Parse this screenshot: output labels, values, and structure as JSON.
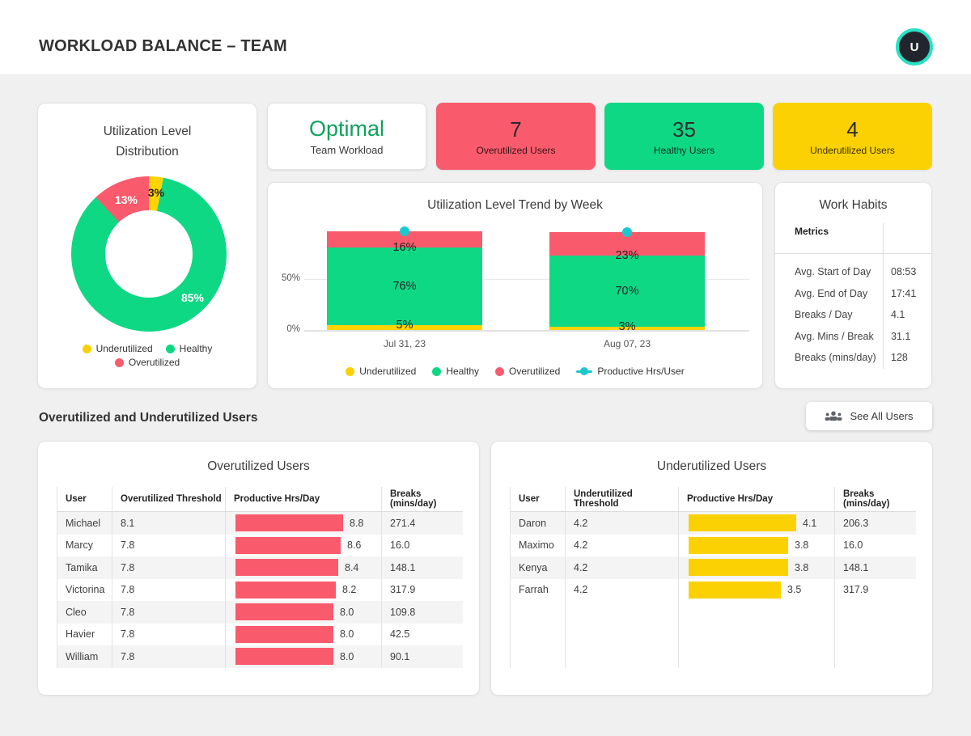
{
  "colors": {
    "overutilized_red": "#f95b6d",
    "healthy_green": "#0fd885",
    "underutilized_yellow": "#fbd104",
    "chart_yellow": "#ffd400",
    "productive_teal": "#1bc8ce",
    "optimal_text_green": "#0fa25d",
    "avatar_ring_teal": "#2be0c5",
    "avatar_bg": "#23252e"
  },
  "header": {
    "title": "WORKLOAD BALANCE – TEAM",
    "avatar_letter": "U"
  },
  "donut_card": {
    "title_line1": "Utilization Level",
    "title_line2": "Distribution",
    "chart": {
      "slices": [
        {
          "name": "Underutilized",
          "pct": 3,
          "label": "3%",
          "color": "#ffd400"
        },
        {
          "name": "Healthy",
          "pct": 85,
          "label": "85%",
          "color": "#0fd885"
        },
        {
          "name": "Overutilized",
          "pct": 13,
          "label": "13%",
          "color": "#f95b6d"
        }
      ]
    },
    "legend": [
      {
        "label": "Underutilized"
      },
      {
        "label": "Healthy"
      },
      {
        "label": "Overutilized"
      }
    ]
  },
  "kpi_cards": [
    {
      "value": "Optimal",
      "label": "Team Workload"
    },
    {
      "value": "7",
      "label": "Overutilized Users"
    },
    {
      "value": "35",
      "label": "Healthy Users"
    },
    {
      "value": "4",
      "label": "Underutilized Users"
    }
  ],
  "trend_card": {
    "title": "Utilization Level Trend by Week",
    "y_ticks": [
      "50%",
      "0%"
    ],
    "weeks": [
      {
        "date": "Jul 31, 23",
        "underutilized": 5,
        "healthy": 76,
        "overutilized": 16,
        "underutilized_label": "5%",
        "healthy_label": "76%",
        "overutilized_label": "16%"
      },
      {
        "date": "Aug 07, 23",
        "underutilized": 3,
        "healthy": 70,
        "overutilized": 23,
        "underutilized_label": "3%",
        "healthy_label": "70%",
        "overutilized_label": "23%"
      }
    ],
    "legend": [
      {
        "label": "Underutilized"
      },
      {
        "label": "Healthy"
      },
      {
        "label": "Overutilized"
      },
      {
        "label": "Productive Hrs/User"
      }
    ]
  },
  "work_habits": {
    "title": "Work Habits",
    "header": "Metrics",
    "rows": [
      {
        "label": "Avg. Start of Day",
        "value": "08:53"
      },
      {
        "label": "Avg. End of Day",
        "value": "17:41"
      },
      {
        "label": "Breaks / Day",
        "value": "4.1"
      },
      {
        "label": "Avg. Mins / Break",
        "value": "31.1"
      },
      {
        "label": "Breaks (mins/day)",
        "value": "128"
      }
    ]
  },
  "section": {
    "heading": "Overutilized and Underutilized Users",
    "see_all_label": "See All Users"
  },
  "overutilized_table": {
    "title": "Overutilized Users",
    "columns": [
      "User",
      "Overutilized Threshold",
      "Productive Hrs/Day",
      "Breaks (mins/day)"
    ],
    "bar_max": 8.8,
    "rows": [
      {
        "user": "Michael",
        "threshold": "8.1",
        "hours": "8.8",
        "breaks": "271.4"
      },
      {
        "user": "Marcy",
        "threshold": "7.8",
        "hours": "8.6",
        "breaks": "16.0"
      },
      {
        "user": "Tamika",
        "threshold": "7.8",
        "hours": "8.4",
        "breaks": "148.1"
      },
      {
        "user": "Victorina",
        "threshold": "7.8",
        "hours": "8.2",
        "breaks": "317.9"
      },
      {
        "user": "Cleo",
        "threshold": "7.8",
        "hours": "8.0",
        "breaks": "109.8"
      },
      {
        "user": "Havier",
        "threshold": "7.8",
        "hours": "8.0",
        "breaks": "42.5"
      },
      {
        "user": "William",
        "threshold": "7.8",
        "hours": "8.0",
        "breaks": "90.1"
      }
    ]
  },
  "underutilized_table": {
    "title": "Underutilized Users",
    "columns": [
      "User",
      "Underutilized Threshold",
      "Productive Hrs/Day",
      "Breaks (mins/day)"
    ],
    "bar_max": 4.1,
    "rows": [
      {
        "user": "Daron",
        "threshold": "4.2",
        "hours": "4.1",
        "breaks": "206.3"
      },
      {
        "user": "Maximo",
        "threshold": "4.2",
        "hours": "3.8",
        "breaks": "16.0"
      },
      {
        "user": "Kenya",
        "threshold": "4.2",
        "hours": "3.8",
        "breaks": "148.1"
      },
      {
        "user": "Farrah",
        "threshold": "4.2",
        "hours": "3.5",
        "breaks": "317.9"
      }
    ]
  },
  "chart_data": [
    {
      "type": "pie",
      "title": "Utilization Level Distribution",
      "categories": [
        "Underutilized",
        "Healthy",
        "Overutilized"
      ],
      "values": [
        3,
        85,
        13
      ],
      "colors": [
        "#ffd400",
        "#0fd885",
        "#f95b6d"
      ],
      "legend_position": "bottom"
    },
    {
      "type": "bar",
      "subtype": "stacked-percent",
      "title": "Utilization Level Trend by Week",
      "categories": [
        "Jul 31, 23",
        "Aug 07, 23"
      ],
      "series": [
        {
          "name": "Underutilized",
          "values": [
            5,
            3
          ],
          "color": "#ffd400"
        },
        {
          "name": "Healthy",
          "values": [
            76,
            70
          ],
          "color": "#0fd885"
        },
        {
          "name": "Overutilized",
          "values": [
            16,
            23
          ],
          "color": "#f95b6d"
        },
        {
          "name": "Productive Hrs/User",
          "type": "line-marker",
          "color": "#1bc8ce"
        }
      ],
      "ylabel": "",
      "ylim": [
        0,
        100
      ],
      "y_ticks_shown": [
        "0%",
        "50%"
      ],
      "grid": true,
      "legend_position": "bottom"
    }
  ]
}
